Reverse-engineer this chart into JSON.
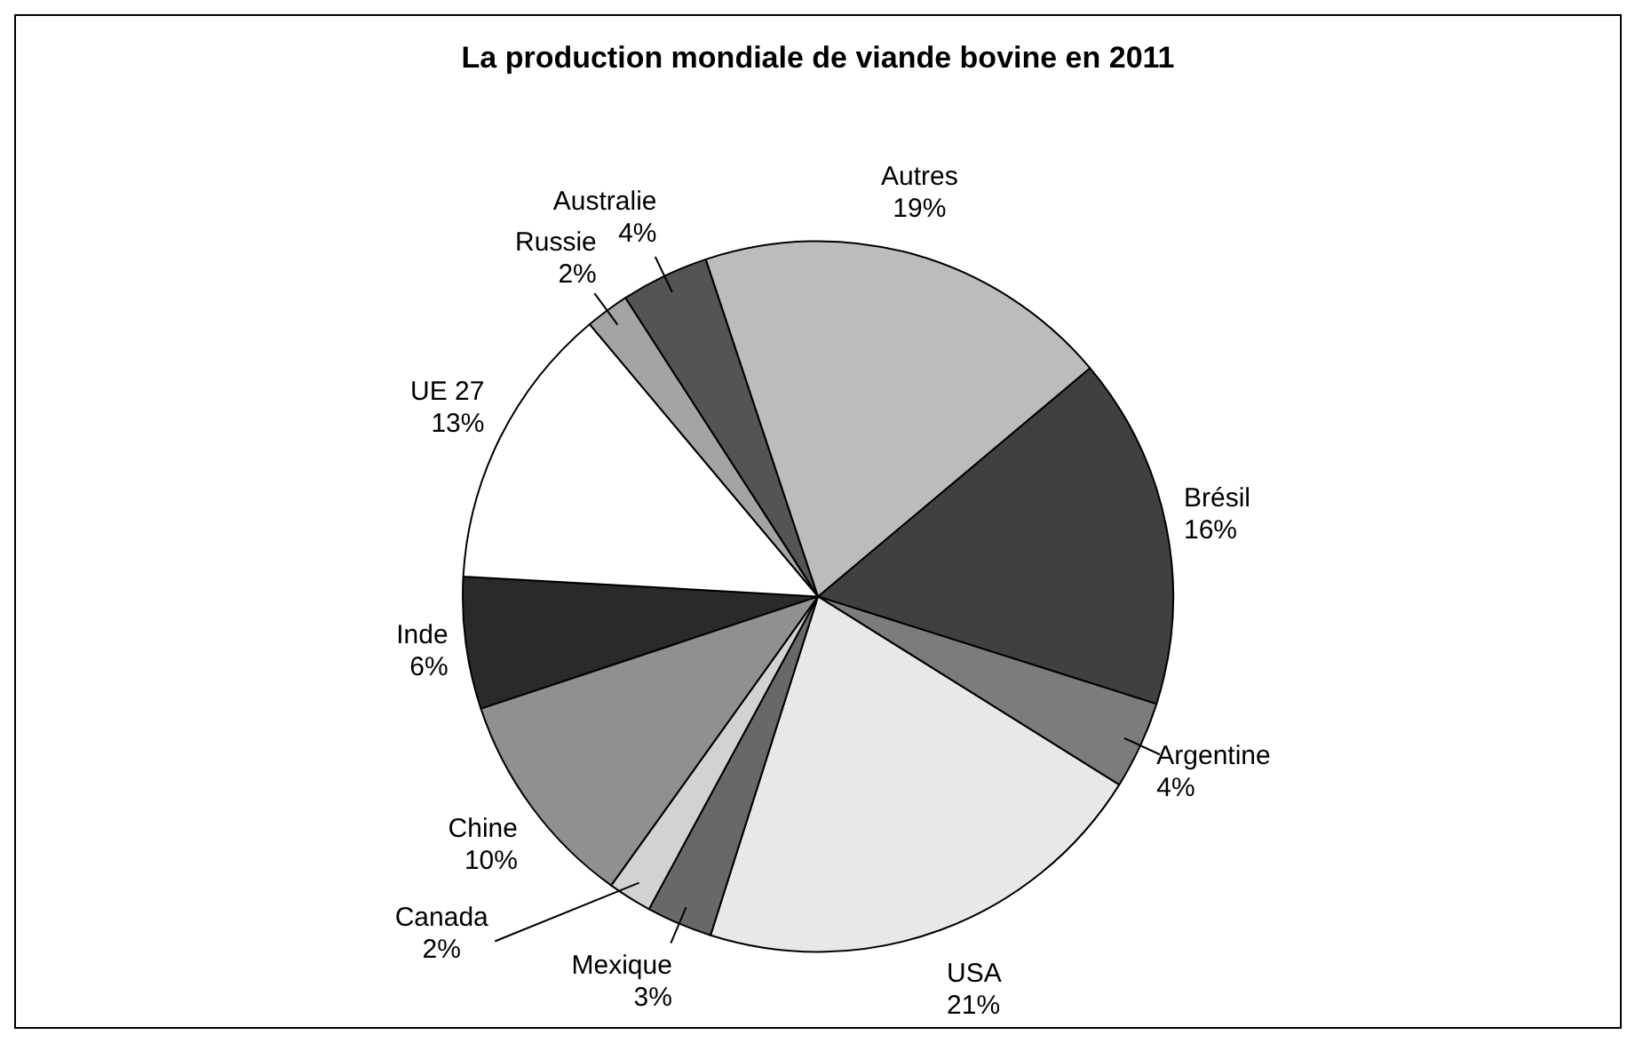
{
  "chart_data": {
    "type": "pie",
    "title": "La production mondiale de viande bovine en 2011",
    "categories": [
      "Brésil",
      "Argentine",
      "USA",
      "Mexique",
      "Canada",
      "Chine",
      "Inde",
      "UE 27",
      "Russie",
      "Australie",
      "Autres"
    ],
    "values": [
      16,
      4,
      21,
      3,
      2,
      10,
      6,
      13,
      2,
      4,
      19
    ],
    "value_labels": [
      "16%",
      "4%",
      "21%",
      "3%",
      "2%",
      "10%",
      "6%",
      "13%",
      "2%",
      "4%",
      "19%"
    ],
    "colors": [
      "#404040",
      "#7c7c7c",
      "#e8e8e8",
      "#686868",
      "#d2d2d2",
      "#909090",
      "#2a2a2a",
      "#ffffff",
      "#a4a4a4",
      "#545454",
      "#bcbcbc"
    ],
    "legend": false
  }
}
